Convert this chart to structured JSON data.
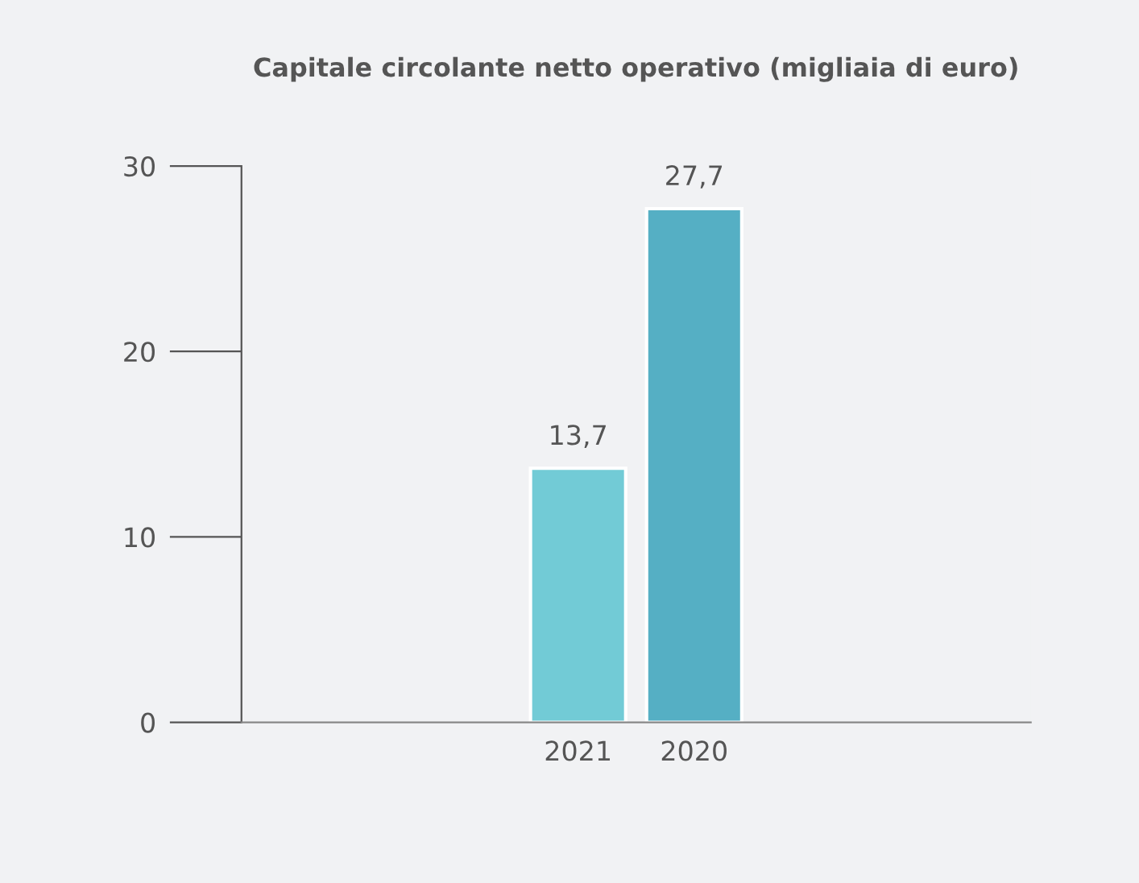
{
  "chart_data": {
    "type": "bar",
    "title": "Capitale circolante netto operativo (migliaia di euro)",
    "categories": [
      "2021",
      "2020"
    ],
    "values": [
      13.7,
      27.7
    ],
    "colors": [
      "#72cbd6",
      "#55afc4"
    ],
    "value_labels": [
      "13,7",
      "27,7"
    ],
    "ylim": [
      0,
      30
    ],
    "yticks": [
      0,
      10,
      20,
      30
    ],
    "grid": false,
    "legend": false
  }
}
